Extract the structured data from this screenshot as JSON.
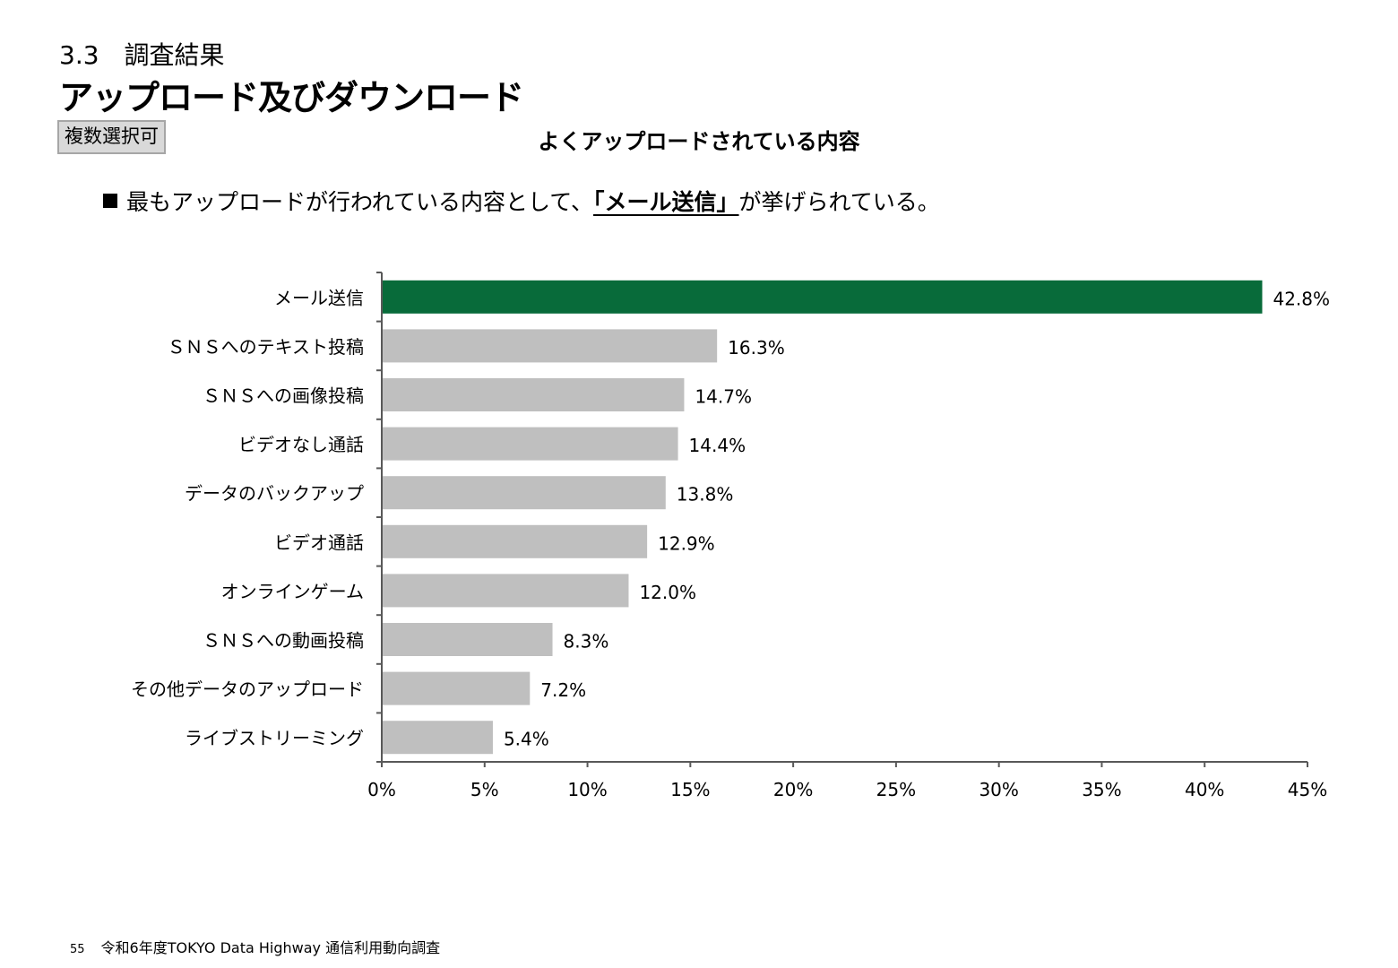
{
  "header": {
    "section": "3.3　調査結果",
    "title": "アップロード及びダウンロード",
    "tag": "複数選択可"
  },
  "bullet": {
    "before": "最もアップロードが行われている内容として、",
    "highlight": "「メール送信」",
    "after": "が挙げられている。"
  },
  "footer": {
    "page": "55",
    "text": "令和6年度TOKYO Data Highway 通信利用動向調査"
  },
  "colors": {
    "highlight_bar": "#086b3a",
    "bar": "#bfbfbf",
    "axis": "#595959"
  },
  "chart_data": {
    "type": "bar",
    "orientation": "horizontal",
    "title": "よくアップロードされている内容",
    "categories": [
      "メール送信",
      "ＳＮＳへのテキスト投稿",
      "ＳＮＳへの画像投稿",
      "ビデオなし通話",
      "データのバックアップ",
      "ビデオ通話",
      "オンラインゲーム",
      "ＳＮＳへの動画投稿",
      "その他データのアップロード",
      "ライブストリーミング"
    ],
    "values": [
      42.8,
      16.3,
      14.7,
      14.4,
      13.8,
      12.9,
      12.0,
      8.3,
      7.2,
      5.4
    ],
    "value_labels": [
      "42.8%",
      "16.3%",
      "14.7%",
      "14.4%",
      "13.8%",
      "12.9%",
      "12.0%",
      "8.3%",
      "7.2%",
      "5.4%"
    ],
    "xlim": [
      0,
      45
    ],
    "xticks": [
      0,
      5,
      10,
      15,
      20,
      25,
      30,
      35,
      40,
      45
    ],
    "xtick_labels": [
      "0%",
      "5%",
      "10%",
      "15%",
      "20%",
      "25%",
      "30%",
      "35%",
      "40%",
      "45%"
    ],
    "highlight_index": 0,
    "grid": false,
    "legend": "none"
  }
}
